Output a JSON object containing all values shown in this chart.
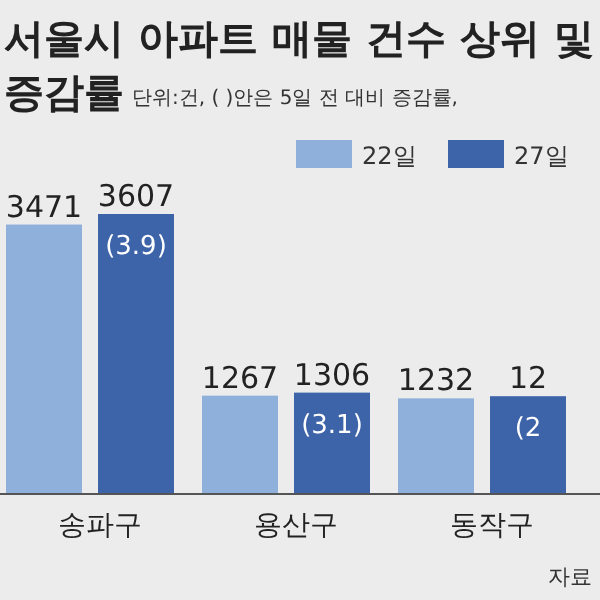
{
  "chart_data": {
    "type": "bar",
    "title": "서울시 아파트 매물 건수 상위 및 증감률",
    "subtitle": "단위:건, ( )안은 5일 전 대비 증감률,",
    "categories": [
      "송파구",
      "용산구",
      "동작구"
    ],
    "series": [
      {
        "name": "22일",
        "color": "#8fb0da",
        "values": [
          3471,
          1267,
          1232
        ],
        "value_labels": [
          "3471",
          "1267",
          "1232"
        ]
      },
      {
        "name": "27일",
        "color": "#3d64a8",
        "values": [
          3607,
          1306,
          1260
        ],
        "value_labels": [
          "3607",
          "1306",
          null
        ]
      }
    ],
    "annotations": [
      {
        "text": "(3.9)",
        "x": "송파구",
        "y": 3607
      },
      {
        "text": "(3.1)",
        "x": "용산구",
        "y": 1306
      },
      {
        "text": "(2",
        "x": "동작구",
        "y": 1260
      },
      {
        "text": "12",
        "x": "동작구",
        "y": 1260
      },
      "자료"
    ],
    "legend": "top right"
  }
}
